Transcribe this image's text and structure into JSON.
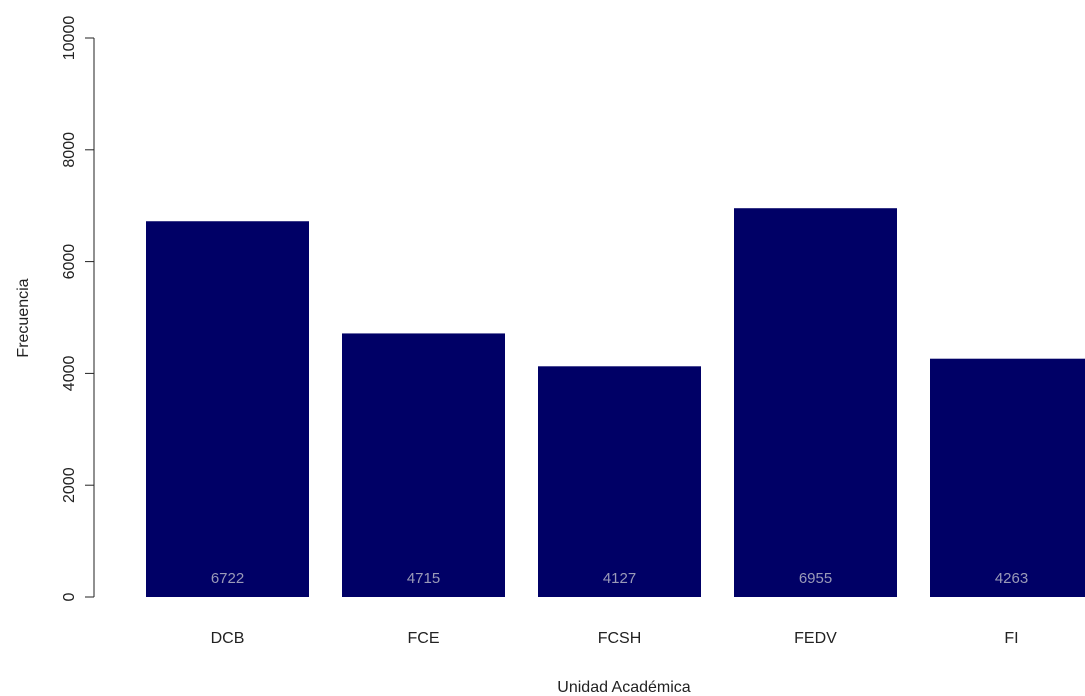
{
  "chart_data": {
    "type": "bar",
    "categories": [
      "DCB",
      "FCE",
      "FCSH",
      "FEDV",
      "FI"
    ],
    "values": [
      6722,
      4715,
      4127,
      6955,
      4263
    ],
    "data_labels": [
      "6722",
      "4715",
      "4127",
      "6955",
      "4263"
    ],
    "title": "",
    "xlabel": "Unidad Académica",
    "ylabel": "Frecuencia",
    "ylim": [
      0,
      10000
    ],
    "yticks": [
      0,
      2000,
      4000,
      6000,
      8000,
      10000
    ],
    "ytick_labels": [
      "0",
      "2000",
      "4000",
      "6000",
      "8000",
      "10000"
    ],
    "grid": false,
    "legend": "none",
    "colors": {
      "bar": "#000066",
      "bar_label": "#9a9ab8",
      "axis": "#222222"
    }
  }
}
